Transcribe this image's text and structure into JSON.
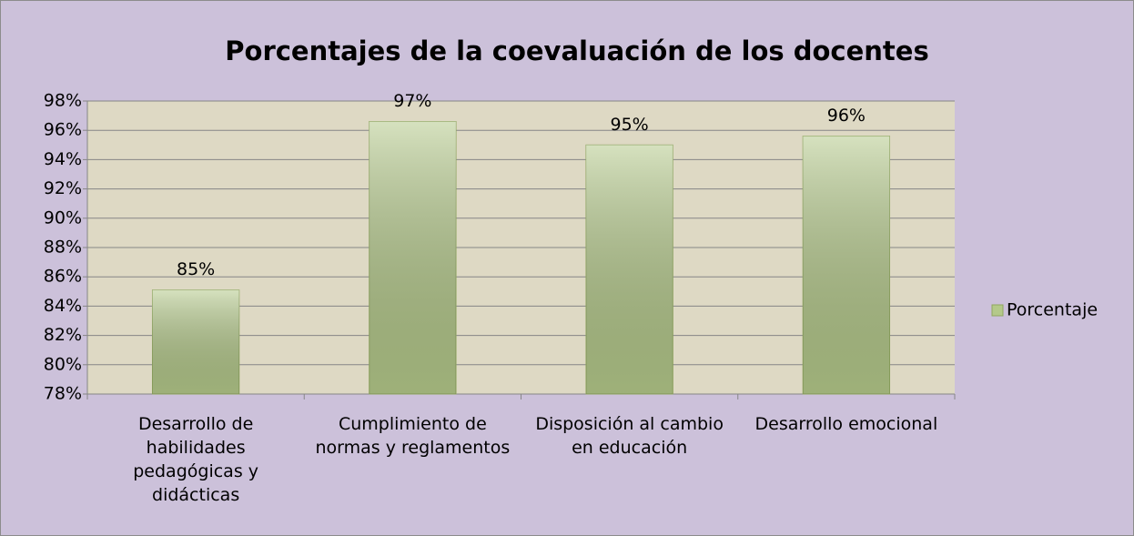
{
  "chart_data": {
    "type": "bar",
    "title": "Porcentajes de la coevaluación de los docentes",
    "categories": [
      "Desarrollo de habilidades pedagógicas y didácticas",
      "Cumplimiento de normas y reglamentos",
      "Disposición al cambio en educación",
      "Desarrollo emocional"
    ],
    "series": [
      {
        "name": "Porcentaje",
        "color": "#b4c98a",
        "values": [
          85.1,
          96.6,
          95.0,
          95.6
        ],
        "value_labels": [
          "85%",
          "97%",
          "95%",
          "96%"
        ]
      }
    ],
    "ylim": [
      78,
      98
    ],
    "yticks": [
      {
        "value": 78,
        "label": "78%"
      },
      {
        "value": 80,
        "label": "80%"
      },
      {
        "value": 82,
        "label": "82%"
      },
      {
        "value": 84,
        "label": "84%"
      },
      {
        "value": 86,
        "label": "86%"
      },
      {
        "value": 88,
        "label": "88%"
      },
      {
        "value": 90,
        "label": "90%"
      },
      {
        "value": 92,
        "label": "92%"
      },
      {
        "value": 94,
        "label": "94%"
      },
      {
        "value": 96,
        "label": "96%"
      },
      {
        "value": 98,
        "label": "98%"
      }
    ],
    "grid": true,
    "legend": "right"
  }
}
